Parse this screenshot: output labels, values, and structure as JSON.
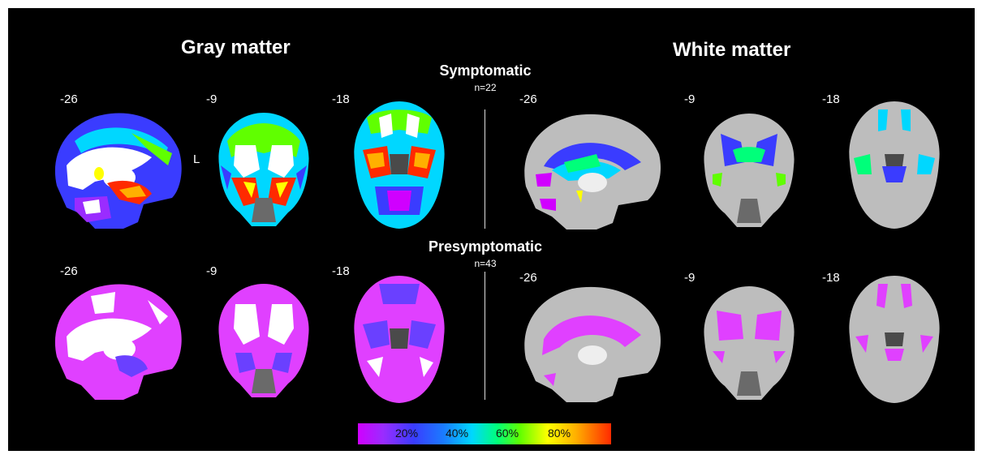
{
  "headings": {
    "gray": "Gray matter",
    "white": "White matter"
  },
  "groups": {
    "symptomatic": {
      "label": "Symptomatic",
      "n": "n=22"
    },
    "presymptomatic": {
      "label": "Presymptomatic",
      "n": "n=43"
    }
  },
  "coords": {
    "sagittal": "-26",
    "coronal": "-9",
    "axial": "-18"
  },
  "orientation": "L",
  "colorbar": {
    "ticks": [
      "20%",
      "40%",
      "60%",
      "80%"
    ]
  },
  "colors": {
    "background": "#000000",
    "brain_gray": "#bdbdbd",
    "presymptomatic_overlay": "#e040ff",
    "scale": [
      "#d000ff",
      "#3a3cff",
      "#00d7ff",
      "#00ff7a",
      "#ffff00",
      "#ff2a00"
    ]
  }
}
